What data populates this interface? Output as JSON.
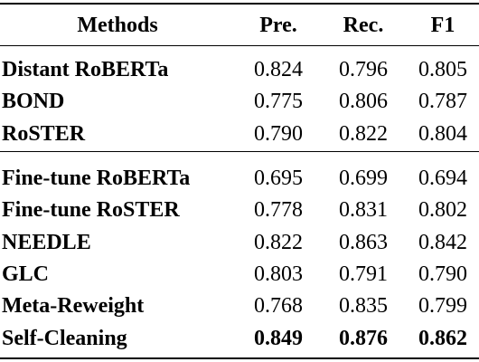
{
  "table": {
    "header": [
      "Methods",
      "Pre.",
      "Rec.",
      "F1"
    ],
    "groups": [
      [
        [
          "Distant RoBERTa",
          "0.824",
          "0.796",
          "0.805"
        ],
        [
          "BOND",
          "0.775",
          "0.806",
          "0.787"
        ],
        [
          "RoSTER",
          "0.790",
          "0.822",
          "0.804"
        ]
      ],
      [
        [
          "Fine-tune RoBERTa",
          "0.695",
          "0.699",
          "0.694"
        ],
        [
          "Fine-tune RoSTER",
          "0.778",
          "0.831",
          "0.802"
        ],
        [
          "NEEDLE",
          "0.822",
          "0.863",
          "0.842"
        ],
        [
          "GLC",
          "0.803",
          "0.791",
          "0.790"
        ],
        [
          "Meta-Reweight",
          "0.768",
          "0.835",
          "0.799"
        ],
        [
          "Self-Cleaning",
          "0.849",
          "0.876",
          "0.862"
        ]
      ]
    ]
  }
}
